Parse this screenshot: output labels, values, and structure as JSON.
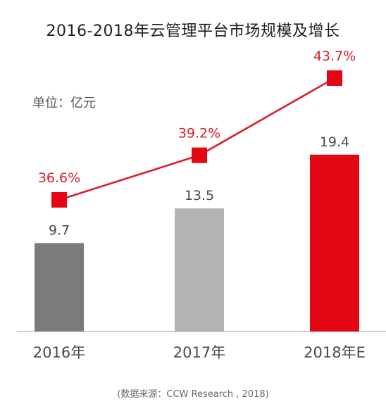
{
  "chart_data": {
    "type": "bar",
    "title": "2016-2018年云管理平台市场规模及增长",
    "unit_label": "单位：亿元",
    "categories": [
      "2016年",
      "2017年",
      "2018年E"
    ],
    "series": [
      {
        "values": [
          9.7,
          13.5,
          19.4
        ],
        "colors": [
          "#7b7b7b",
          "#b3b3b3",
          "#e30613"
        ]
      },
      {
        "type": "line",
        "values": [
          36.6,
          39.2,
          43.7
        ],
        "labels": [
          "36.6%",
          "39.2%",
          "43.7%"
        ],
        "color": "#d81e2b"
      }
    ],
    "value_labels": [
      "9.7",
      "13.5",
      "19.4"
    ],
    "source": "(数据来源：CCW Research , 2018)",
    "grid": false,
    "legend": "none"
  }
}
